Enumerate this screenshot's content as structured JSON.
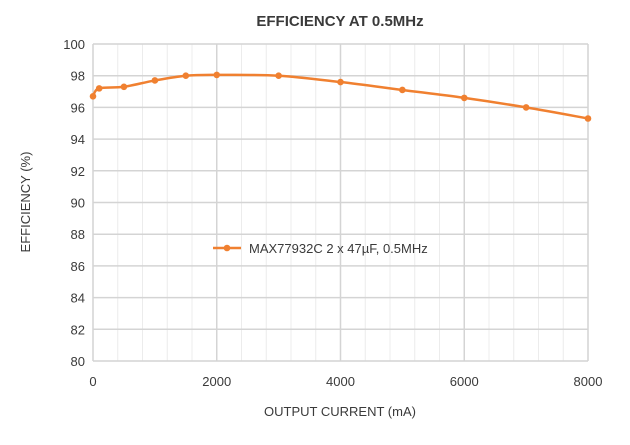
{
  "chart_data": {
    "type": "line",
    "title": "EFFICIENCY AT 0.5MHz",
    "xlabel": "OUTPUT CURRENT (mA)",
    "ylabel": "EFFICIENCY (%)",
    "xlim": [
      0,
      8000
    ],
    "ylim": [
      80,
      100
    ],
    "xticks": [
      0,
      2000,
      4000,
      6000,
      8000
    ],
    "yticks": [
      80,
      82,
      84,
      86,
      88,
      90,
      92,
      94,
      96,
      98,
      100
    ],
    "grid": true,
    "legend_position": "center",
    "series": [
      {
        "name": "MAX77932C 2 x 47µF, 0.5MHz",
        "color": "#f08030",
        "x": [
          0,
          100,
          500,
          1000,
          1500,
          2000,
          3000,
          4000,
          5000,
          6000,
          7000,
          8000
        ],
        "y": [
          96.7,
          97.2,
          97.3,
          97.7,
          98.0,
          98.05,
          98.0,
          97.6,
          97.1,
          96.6,
          96.0,
          95.3
        ]
      }
    ]
  }
}
